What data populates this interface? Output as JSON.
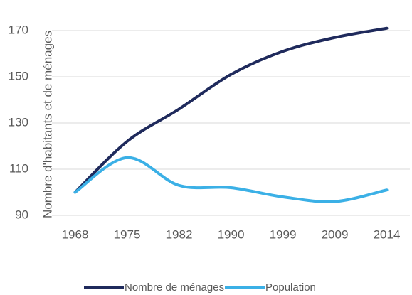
{
  "chart_data": {
    "type": "line",
    "ylabel": "Nombre d'habitants et de ménages",
    "categories": [
      "1968",
      "1975",
      "1982",
      "1990",
      "1999",
      "2009",
      "2014"
    ],
    "series": [
      {
        "name": "Nombre de ménages",
        "color": "#1f2a5c",
        "values": [
          100,
          122,
          136,
          151,
          161,
          167,
          171
        ]
      },
      {
        "name": "Population",
        "color": "#3bb0e6",
        "values": [
          100,
          115,
          103,
          102,
          98,
          96,
          101
        ]
      }
    ],
    "ylim": [
      90,
      180
    ],
    "yticks": [
      90,
      110,
      130,
      150,
      170
    ],
    "grid": true,
    "legend": "bottom"
  }
}
